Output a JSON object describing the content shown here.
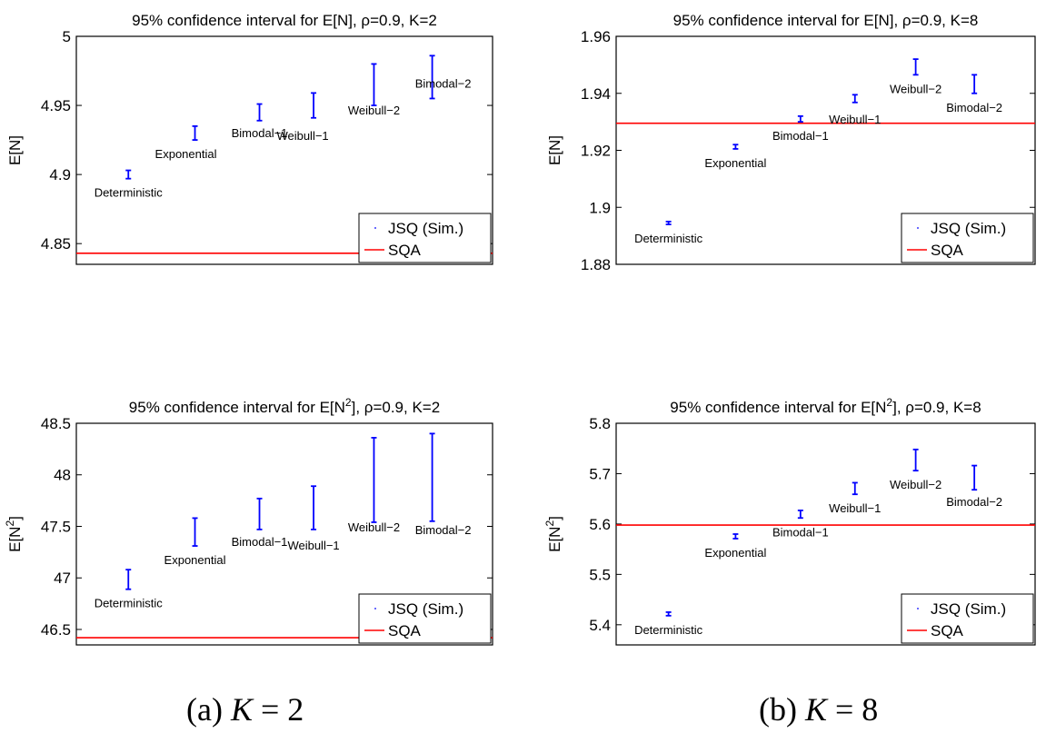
{
  "captions": {
    "a_prefix": "(a)",
    "a_var": "K",
    "a_rest": " = 2",
    "b_prefix": "(b)",
    "b_var": "K",
    "b_rest": " = 8"
  },
  "legend": {
    "series": [
      "JSQ (Sim.)",
      "SQA"
    ]
  },
  "colors": {
    "ci": "#0000ff",
    "sqa": "#ff0000",
    "axis": "#000000"
  },
  "chart_data": [
    {
      "type": "errorbar",
      "title": "95% confidence interval for E[N], ρ=0.9, K=2",
      "title_parts": {
        "before": "95% confidence interval for E[N",
        "sup": "",
        "after": "], ρ=0.9, K=2"
      },
      "ylabel": "E[N]",
      "ylabel_sup": "",
      "ylim": [
        4.835,
        5.0
      ],
      "yticks": [
        4.85,
        4.9,
        4.95,
        5
      ],
      "ytick_labels": [
        "4.85",
        "4.9",
        "4.95",
        "5"
      ],
      "categories": [
        "Deterministic",
        "Exponential",
        "Bimodal−1",
        "Weibull−1",
        "Weibull−2",
        "Bimodal−2"
      ],
      "ci_low": [
        4.897,
        4.925,
        4.939,
        4.941,
        4.95,
        4.955
      ],
      "ci_high": [
        4.903,
        4.935,
        4.951,
        4.959,
        4.98,
        4.986
      ],
      "sqa": 4.843,
      "legend_location": "lower-right"
    },
    {
      "type": "errorbar",
      "title": "95% confidence interval for E[N], ρ=0.9, K=8",
      "title_parts": {
        "before": "95% confidence interval for E[N",
        "sup": "",
        "after": "], ρ=0.9, K=8"
      },
      "ylabel": "E[N]",
      "ylabel_sup": "",
      "ylim": [
        1.88,
        1.96
      ],
      "yticks": [
        1.88,
        1.9,
        1.92,
        1.94,
        1.96
      ],
      "ytick_labels": [
        "1.88",
        "1.9",
        "1.92",
        "1.94",
        "1.96"
      ],
      "categories": [
        "Deterministic",
        "Exponential",
        "Bimodal−1",
        "Weibull−1",
        "Weibull−2",
        "Bimodal−2"
      ],
      "ci_low": [
        1.894,
        1.9205,
        1.93,
        1.9368,
        1.9465,
        1.94
      ],
      "ci_high": [
        1.895,
        1.922,
        1.932,
        1.9395,
        1.952,
        1.9465
      ],
      "sqa": 1.9295,
      "legend_location": "lower-right"
    },
    {
      "type": "errorbar",
      "title": "95% confidence interval for E[N2], ρ=0.9, K=2",
      "title_parts": {
        "before": "95% confidence interval for E[N",
        "sup": "2",
        "after": "], ρ=0.9, K=2"
      },
      "ylabel": "E[N2]",
      "ylabel_sup": "2",
      "ylim": [
        46.35,
        48.5
      ],
      "yticks": [
        46.5,
        47,
        47.5,
        48,
        48.5
      ],
      "ytick_labels": [
        "46.5",
        "47",
        "47.5",
        "48",
        "48.5"
      ],
      "categories": [
        "Deterministic",
        "Exponential",
        "Bimodal−1",
        "Weibull−1",
        "Weibull−2",
        "Bimodal−2"
      ],
      "ci_low": [
        46.89,
        47.31,
        47.47,
        47.47,
        47.54,
        47.55
      ],
      "ci_high": [
        47.08,
        47.58,
        47.77,
        47.89,
        48.36,
        48.4
      ],
      "sqa": 46.42,
      "legend_location": "lower-right"
    },
    {
      "type": "errorbar",
      "title": "95% confidence interval for E[N2], ρ=0.9, K=8",
      "title_parts": {
        "before": "95% confidence interval for E[N",
        "sup": "2",
        "after": "], ρ=0.9, K=8"
      },
      "ylabel": "E[N2]",
      "ylabel_sup": "2",
      "ylim": [
        5.36,
        5.8
      ],
      "yticks": [
        5.4,
        5.5,
        5.6,
        5.7,
        5.8
      ],
      "ytick_labels": [
        "5.4",
        "5.5",
        "5.6",
        "5.7",
        "5.8"
      ],
      "categories": [
        "Deterministic",
        "Exponential",
        "Bimodal−1",
        "Weibull−1",
        "Weibull−2",
        "Bimodal−2"
      ],
      "ci_low": [
        5.418,
        5.571,
        5.612,
        5.659,
        5.706,
        5.668
      ],
      "ci_high": [
        5.425,
        5.58,
        5.627,
        5.682,
        5.748,
        5.716
      ],
      "sqa": 5.598,
      "legend_location": "lower-right"
    }
  ]
}
